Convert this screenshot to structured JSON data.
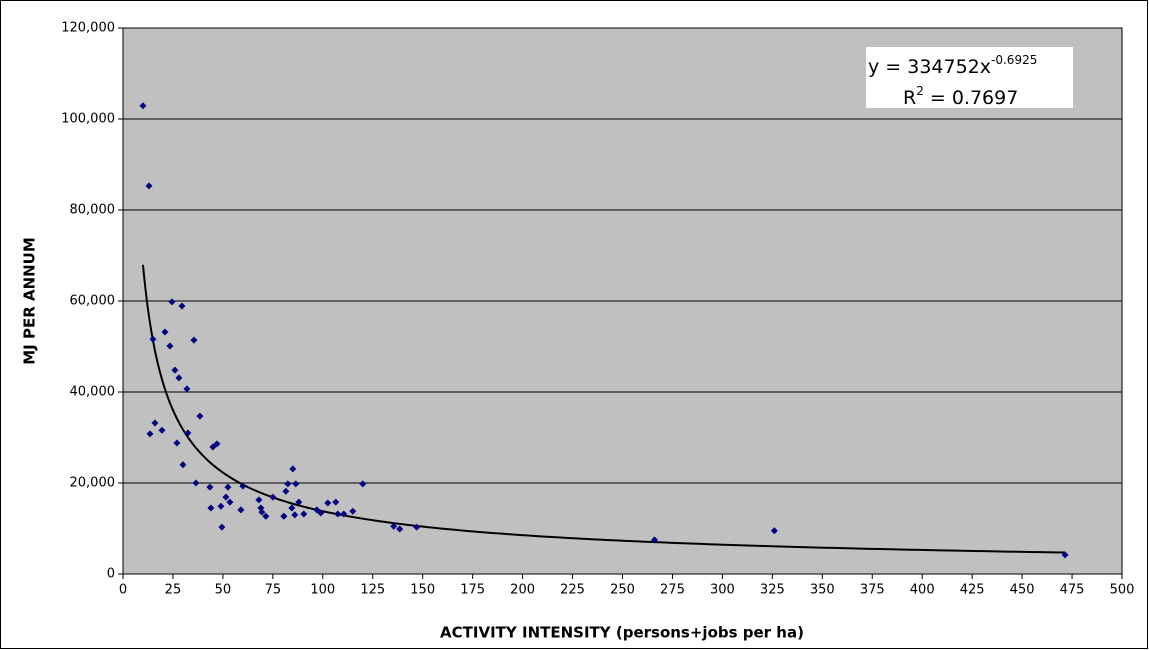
{
  "chart_data": {
    "type": "scatter",
    "x_label": "ACTIVITY INTENSITY (persons+jobs per ha)",
    "y_label": "MJ PER ANNUM",
    "x": [
      10,
      13,
      24.5,
      29.5,
      21,
      15,
      35.5,
      23.5,
      26,
      28,
      32,
      38.5,
      16,
      19.5,
      13.5,
      32.5,
      27,
      47,
      45,
      30,
      36.5,
      43.5,
      60,
      44,
      49,
      51.5,
      53.5,
      52.5,
      49.5,
      59,
      68,
      69,
      69.5,
      71.5,
      75,
      80.5,
      81.5,
      82.5,
      84.5,
      85,
      86.5,
      86,
      88,
      90.5,
      97,
      99,
      102.5,
      106.5,
      107.5,
      110.5,
      115,
      120,
      135.5,
      138.5,
      147,
      266,
      326,
      471.5
    ],
    "series": [
      {
        "color": "#000080",
        "values": [
          102900,
          85300,
          59800,
          58900,
          53200,
          51600,
          51400,
          50100,
          44800,
          43100,
          40700,
          34700,
          33200,
          31600,
          30800,
          31000,
          28800,
          28600,
          27900,
          24000,
          20000,
          19100,
          19300,
          14500,
          14900,
          16900,
          15800,
          19100,
          10300,
          14100,
          16300,
          14500,
          13600,
          12700,
          16900,
          12700,
          18200,
          19800,
          14500,
          23100,
          19800,
          13000,
          15800,
          13200,
          14100,
          13400,
          15600,
          15800,
          13200,
          13200,
          13800,
          19800,
          10500,
          9900,
          10300,
          7500,
          9500,
          4200
        ]
      }
    ],
    "trendline": {
      "type": "power",
      "coefficient": 334752,
      "exponent": -0.6925,
      "color": "#000000",
      "equation_label": {
        "base": "y = 334752x",
        "superscript": "-0.6925"
      },
      "r2_label": {
        "base": "R",
        "superscript": "2",
        "rest": " = 0.7697"
      }
    },
    "xlim": [
      0,
      500
    ],
    "xticks": [
      0,
      25,
      50,
      75,
      100,
      125,
      150,
      175,
      200,
      225,
      250,
      275,
      300,
      325,
      350,
      375,
      400,
      425,
      450,
      475,
      500
    ],
    "ylim": [
      0,
      120000
    ],
    "yticks": [
      0,
      {
        "value": 20000,
        "label": "20,000"
      },
      {
        "value": 40000,
        "label": "40,000"
      },
      {
        "value": 60000,
        "label": "60,000"
      },
      {
        "value": 80000,
        "label": "80,000"
      },
      {
        "value": 100000,
        "label": "100,000"
      },
      {
        "value": 120000,
        "label": "120,000"
      }
    ],
    "grid": true,
    "plot_background": "#c0c0c0"
  }
}
